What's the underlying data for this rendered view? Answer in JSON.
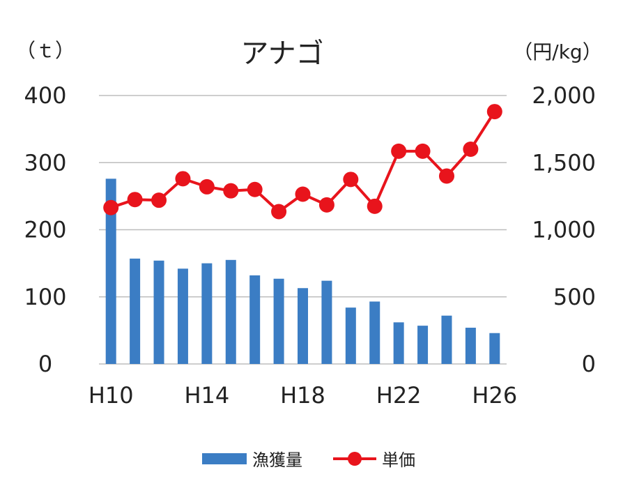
{
  "chart_data": {
    "type": "bar+line",
    "title": "アナゴ",
    "y_left_unit": "（ｔ）",
    "y_right_unit": "（円/kg）",
    "x": [
      "H10",
      "H11",
      "H12",
      "H13",
      "H14",
      "H15",
      "H16",
      "H17",
      "H18",
      "H19",
      "H20",
      "H21",
      "H22",
      "H23",
      "H24",
      "H25",
      "H26"
    ],
    "x_tick_labels": [
      "H10",
      "H14",
      "H18",
      "H22",
      "H26"
    ],
    "y_left_ticks": [
      "400",
      "300",
      "200",
      "100",
      "0"
    ],
    "y_right_ticks": [
      "2,000",
      "1,500",
      "1,000",
      "500",
      "0"
    ],
    "y_left_lim": [
      0,
      400
    ],
    "y_right_lim": [
      0,
      2000
    ],
    "grid": true,
    "legend_position": "bottom",
    "series": [
      {
        "name": "漁獲量",
        "kind": "bar",
        "axis": "left",
        "color": "#3b7dc4",
        "values": [
          276,
          157,
          154,
          142,
          150,
          155,
          132,
          127,
          113,
          124,
          84,
          93,
          62,
          57,
          72,
          54,
          46
        ]
      },
      {
        "name": "単価",
        "kind": "line",
        "axis": "right",
        "color": "#e8141c",
        "values": [
          1165,
          1225,
          1220,
          1380,
          1320,
          1290,
          1300,
          1135,
          1265,
          1185,
          1375,
          1175,
          1585,
          1585,
          1400,
          1600,
          1880
        ]
      }
    ]
  }
}
